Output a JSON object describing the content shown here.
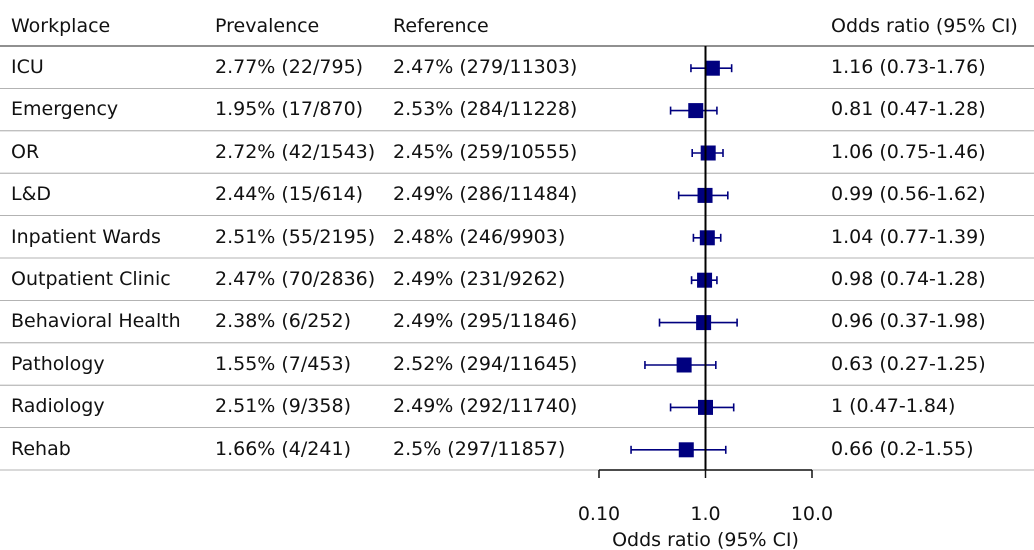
{
  "headers": {
    "workplace": "Workplace",
    "prevalence": "Prevalence",
    "reference": "Reference",
    "or": "Odds ratio (95% CI)"
  },
  "colors": {
    "marker": "#00007F",
    "line": "#000000"
  },
  "chart_data": {
    "type": "forest",
    "x_scale": "log",
    "xlim": [
      0.1,
      10
    ],
    "reference_line": 1,
    "xlabel": "Odds ratio (95% CI)",
    "xticks": [
      {
        "value": 0.1,
        "label": "0.10"
      },
      {
        "value": 1,
        "label": "1.0"
      },
      {
        "value": 10,
        "label": "10.0"
      }
    ],
    "rows": [
      {
        "workplace": "ICU",
        "prevalence": "2.77% (22/795)",
        "reference": "2.47% (279/11303)",
        "or_text": "1.16 (0.73-1.76)",
        "or": 1.16,
        "lo": 0.73,
        "hi": 1.76
      },
      {
        "workplace": "Emergency",
        "prevalence": "1.95% (17/870)",
        "reference": "2.53% (284/11228)",
        "or_text": "0.81 (0.47-1.28)",
        "or": 0.81,
        "lo": 0.47,
        "hi": 1.28
      },
      {
        "workplace": "OR",
        "prevalence": "2.72% (42/1543)",
        "reference": "2.45% (259/10555)",
        "or_text": "1.06 (0.75-1.46)",
        "or": 1.06,
        "lo": 0.75,
        "hi": 1.46
      },
      {
        "workplace": "L&D",
        "prevalence": "2.44% (15/614)",
        "reference": "2.49% (286/11484)",
        "or_text": "0.99 (0.56-1.62)",
        "or": 0.99,
        "lo": 0.56,
        "hi": 1.62
      },
      {
        "workplace": "Inpatient Wards",
        "prevalence": "2.51% (55/2195)",
        "reference": "2.48% (246/9903)",
        "or_text": "1.04 (0.77-1.39)",
        "or": 1.04,
        "lo": 0.77,
        "hi": 1.39
      },
      {
        "workplace": "Outpatient Clinic",
        "prevalence": "2.47% (70/2836)",
        "reference": "2.49% (231/9262)",
        "or_text": "0.98 (0.74-1.28)",
        "or": 0.98,
        "lo": 0.74,
        "hi": 1.28
      },
      {
        "workplace": "Behavioral Health",
        "prevalence": "2.38% (6/252)",
        "reference": "2.49% (295/11846)",
        "or_text": "0.96 (0.37-1.98)",
        "or": 0.96,
        "lo": 0.37,
        "hi": 1.98
      },
      {
        "workplace": "Pathology",
        "prevalence": "1.55% (7/453)",
        "reference": "2.52% (294/11645)",
        "or_text": "0.63 (0.27-1.25)",
        "or": 0.63,
        "lo": 0.27,
        "hi": 1.25
      },
      {
        "workplace": "Radiology",
        "prevalence": "2.51% (9/358)",
        "reference": "2.49% (292/11740)",
        "or_text": "1 (0.47-1.84)",
        "or": 1,
        "lo": 0.47,
        "hi": 1.84
      },
      {
        "workplace": "Rehab",
        "prevalence": "1.66% (4/241)",
        "reference": "2.5% (297/11857)",
        "or_text": "0.66 (0.2-1.55)",
        "or": 0.66,
        "lo": 0.2,
        "hi": 1.55
      }
    ]
  }
}
